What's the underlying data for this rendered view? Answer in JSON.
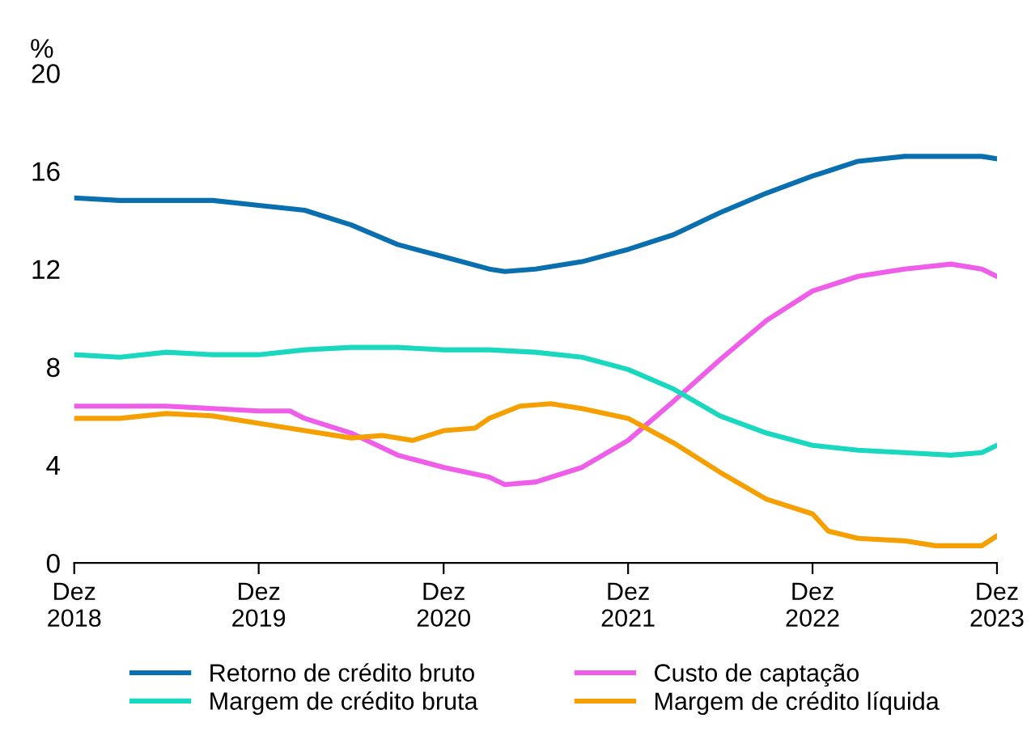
{
  "chart_data": {
    "type": "line",
    "ylabel": "%",
    "ylim": [
      0,
      20
    ],
    "yticks": [
      0,
      4,
      8,
      12,
      16,
      20
    ],
    "xlim": [
      "2018-12",
      "2023-12"
    ],
    "xticks": [
      {
        "value": "2018-12",
        "label": "Dez\n2018"
      },
      {
        "value": "2019-12",
        "label": "Dez\n2019"
      },
      {
        "value": "2020-12",
        "label": "Dez\n2020"
      },
      {
        "value": "2021-12",
        "label": "Dez\n2021"
      },
      {
        "value": "2022-12",
        "label": "Dez\n2022"
      },
      {
        "value": "2023-12",
        "label": "Dez\n2023"
      }
    ],
    "grid": false,
    "legend": "bottom",
    "marker": "none",
    "line_style": "solid",
    "series": [
      {
        "name": "Retorno de crédito bruto",
        "color": "#0a6fae",
        "x": [
          "2018-12",
          "2019-03",
          "2019-06",
          "2019-09",
          "2019-12",
          "2020-03",
          "2020-06",
          "2020-09",
          "2020-12",
          "2021-03",
          "2021-04",
          "2021-06",
          "2021-09",
          "2021-12",
          "2022-03",
          "2022-06",
          "2022-09",
          "2022-12",
          "2023-01",
          "2023-03",
          "2023-06",
          "2023-09",
          "2023-11",
          "2023-12"
        ],
        "values": [
          14.9,
          14.8,
          14.8,
          14.8,
          14.6,
          14.4,
          13.8,
          13.0,
          12.5,
          12.0,
          11.9,
          12.0,
          12.3,
          12.8,
          13.4,
          14.3,
          15.1,
          15.8,
          16.0,
          16.4,
          16.6,
          16.6,
          16.6,
          16.5
        ]
      },
      {
        "name": "Custo de captação",
        "color": "#ee5ee8",
        "x": [
          "2018-12",
          "2019-06",
          "2019-09",
          "2019-12",
          "2020-02",
          "2020-03",
          "2020-06",
          "2020-09",
          "2020-12",
          "2021-03",
          "2021-04",
          "2021-06",
          "2021-09",
          "2021-12",
          "2022-03",
          "2022-06",
          "2022-09",
          "2022-12",
          "2023-03",
          "2023-06",
          "2023-09",
          "2023-11",
          "2023-12"
        ],
        "values": [
          6.4,
          6.4,
          6.3,
          6.2,
          6.2,
          5.9,
          5.3,
          4.4,
          3.9,
          3.5,
          3.2,
          3.3,
          3.9,
          5.0,
          6.6,
          8.3,
          9.9,
          11.1,
          11.7,
          12.0,
          12.2,
          12.0,
          11.7
        ]
      },
      {
        "name": "Margem de crédito bruta",
        "color": "#1ad8c0",
        "x": [
          "2018-12",
          "2019-03",
          "2019-06",
          "2019-09",
          "2019-12",
          "2020-03",
          "2020-06",
          "2020-09",
          "2020-12",
          "2021-03",
          "2021-06",
          "2021-09",
          "2021-12",
          "2022-03",
          "2022-06",
          "2022-09",
          "2022-12",
          "2023-03",
          "2023-06",
          "2023-09",
          "2023-11",
          "2023-12"
        ],
        "values": [
          8.5,
          8.4,
          8.6,
          8.5,
          8.5,
          8.7,
          8.8,
          8.8,
          8.7,
          8.7,
          8.6,
          8.4,
          7.9,
          7.1,
          6.0,
          5.3,
          4.8,
          4.6,
          4.5,
          4.4,
          4.5,
          4.8
        ]
      },
      {
        "name": "Margem de crédito líquida",
        "color": "#f5a000",
        "x": [
          "2018-12",
          "2019-03",
          "2019-06",
          "2019-09",
          "2019-12",
          "2020-03",
          "2020-06",
          "2020-08",
          "2020-10",
          "2020-12",
          "2021-02",
          "2021-03",
          "2021-05",
          "2021-07",
          "2021-09",
          "2021-12",
          "2022-03",
          "2022-06",
          "2022-09",
          "2022-12",
          "2023-01",
          "2023-03",
          "2023-06",
          "2023-08",
          "2023-11",
          "2023-12"
        ],
        "values": [
          5.9,
          5.9,
          6.1,
          6.0,
          5.7,
          5.4,
          5.1,
          5.2,
          5.0,
          5.4,
          5.5,
          5.9,
          6.4,
          6.5,
          6.3,
          5.9,
          4.9,
          3.7,
          2.6,
          2.0,
          1.3,
          1.0,
          0.9,
          0.7,
          0.7,
          1.1
        ]
      }
    ]
  }
}
